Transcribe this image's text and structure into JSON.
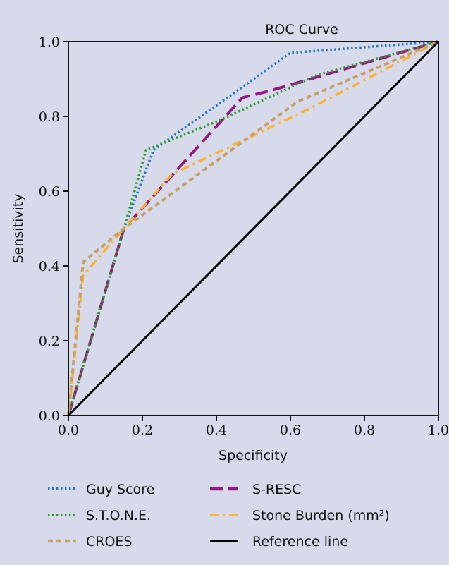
{
  "chart_data": {
    "type": "line",
    "title": "ROC Curve",
    "xlabel": "Specificity",
    "ylabel": "Sensitivity",
    "xlim": [
      0,
      1
    ],
    "ylim": [
      0,
      1
    ],
    "xticks": [
      "0.0",
      "0.2",
      "0.4",
      "0.6",
      "0.8",
      "1.0"
    ],
    "yticks": [
      "0.0",
      "0.2",
      "0.4",
      "0.6",
      "0.8",
      "1.0"
    ],
    "grid": false,
    "legend_position": "bottom",
    "series": [
      {
        "name": "Guy Score",
        "color": "#1f77c4",
        "style": "dotted",
        "points": [
          [
            0,
            0
          ],
          [
            0.15,
            0.5
          ],
          [
            0.23,
            0.71
          ],
          [
            0.6,
            0.97
          ],
          [
            1,
            1
          ]
        ]
      },
      {
        "name": "S-RESC",
        "color": "#97197f",
        "style": "dashed",
        "points": [
          [
            0,
            0
          ],
          [
            0.15,
            0.5
          ],
          [
            0.47,
            0.85
          ],
          [
            0.55,
            0.87
          ],
          [
            1,
            1
          ]
        ]
      },
      {
        "name": "S.T.O.N.E.",
        "color": "#2ca02c",
        "style": "dotted",
        "points": [
          [
            0,
            0
          ],
          [
            0.15,
            0.5
          ],
          [
            0.21,
            0.71
          ],
          [
            0.41,
            0.79
          ],
          [
            0.67,
            0.91
          ],
          [
            1,
            1
          ]
        ]
      },
      {
        "name": "Stone Burden (mm²)",
        "color": "#fbb331",
        "style": "dashdot",
        "points": [
          [
            0,
            0
          ],
          [
            0.04,
            0.375
          ],
          [
            0.15,
            0.5
          ],
          [
            0.28,
            0.645
          ],
          [
            0.65,
            0.82
          ],
          [
            1,
            1
          ]
        ]
      },
      {
        "name": "CROES",
        "color": "#c9a06a",
        "style": "shortdash",
        "points": [
          [
            0,
            0
          ],
          [
            0.04,
            0.41
          ],
          [
            0.15,
            0.5
          ],
          [
            0.62,
            0.84
          ],
          [
            1,
            1
          ]
        ]
      },
      {
        "name": "Reference line",
        "color": "#000000",
        "style": "solid",
        "points": [
          [
            0,
            0
          ],
          [
            1,
            1
          ]
        ]
      }
    ]
  }
}
